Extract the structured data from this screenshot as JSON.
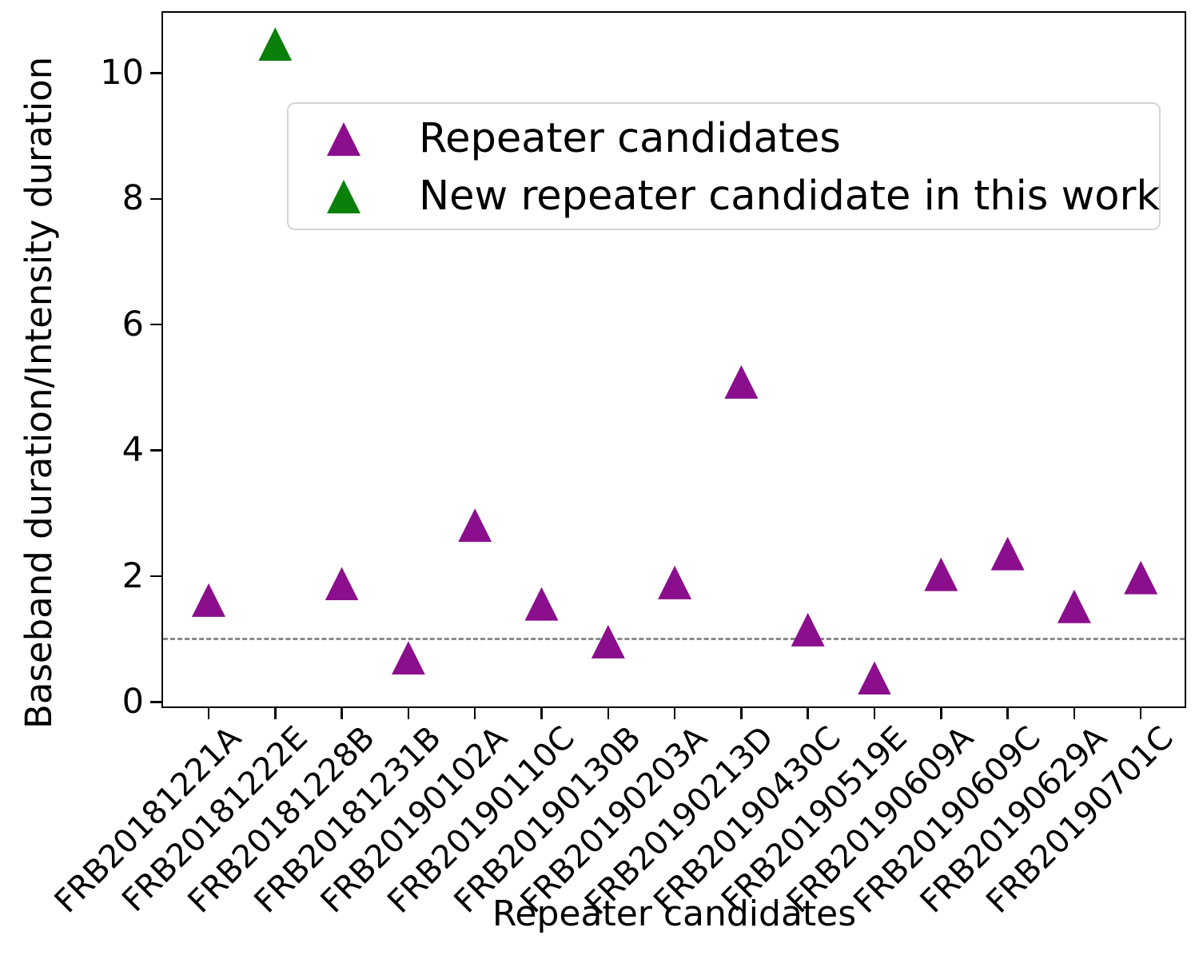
{
  "figure": {
    "ylabel": "Baseband duration/Intensity duration",
    "xlabel": "Repeater candidates"
  },
  "legend": {
    "items": [
      {
        "label": "Repeater candidates",
        "color": "#8b0f8d"
      },
      {
        "label": "New repeater candidate in this work",
        "color": "#0a800a"
      }
    ]
  },
  "chart_data": {
    "type": "scatter",
    "marker": "triangle-up",
    "title": "",
    "xlabel": "Repeater candidates",
    "ylabel": "Baseband duration/Intensity duration",
    "categories": [
      "FRB20181221A",
      "FRB20181222E",
      "FRB20181228B",
      "FRB20181231B",
      "FRB20190102A",
      "FRB20190110C",
      "FRB20190130B",
      "FRB20190203A",
      "FRB20190213D",
      "FRB20190430C",
      "FRB20190519E",
      "FRB20190609A",
      "FRB20190609C",
      "FRB20190629A",
      "FRB20190701C"
    ],
    "series": [
      {
        "name": "Repeater candidates",
        "color": "#8b0f8d",
        "points": [
          {
            "category_index": 0,
            "category": "FRB20181221A",
            "value": 1.62
          },
          {
            "category_index": 2,
            "category": "FRB20181228B",
            "value": 1.88
          },
          {
            "category_index": 3,
            "category": "FRB20181231B",
            "value": 0.7
          },
          {
            "category_index": 4,
            "category": "FRB20190102A",
            "value": 2.81
          },
          {
            "category_index": 5,
            "category": "FRB20190110C",
            "value": 1.56
          },
          {
            "category_index": 6,
            "category": "FRB20190130B",
            "value": 0.96
          },
          {
            "category_index": 7,
            "category": "FRB20190203A",
            "value": 1.9
          },
          {
            "category_index": 8,
            "category": "FRB20190213D",
            "value": 5.09
          },
          {
            "category_index": 9,
            "category": "FRB20190430C",
            "value": 1.15
          },
          {
            "category_index": 10,
            "category": "FRB20190519E",
            "value": 0.38
          },
          {
            "category_index": 11,
            "category": "FRB20190609A",
            "value": 2.03
          },
          {
            "category_index": 12,
            "category": "FRB20190609C",
            "value": 2.36
          },
          {
            "category_index": 13,
            "category": "FRB20190629A",
            "value": 1.52
          },
          {
            "category_index": 14,
            "category": "FRB20190701C",
            "value": 1.98
          }
        ]
      },
      {
        "name": "New repeater candidate in this work",
        "color": "#0a800a",
        "points": [
          {
            "category_index": 1,
            "category": "FRB20181222E",
            "value": 10.46
          }
        ]
      }
    ],
    "yticks": [
      0,
      2,
      4,
      6,
      8,
      10
    ],
    "ylim": [
      -0.1,
      10.97
    ],
    "grid": false,
    "legend_position": "upper center",
    "reference_line": {
      "y": 1,
      "style": "dashed",
      "color": "#8a8a8a"
    }
  }
}
